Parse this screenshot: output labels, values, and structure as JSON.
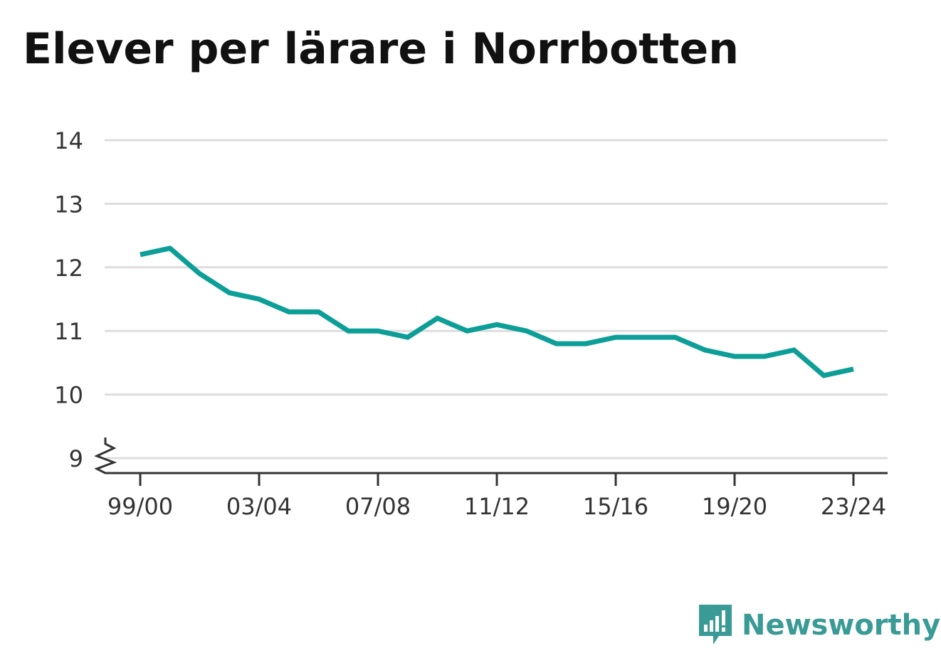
{
  "chart_data": {
    "type": "line",
    "title": "Elever per lärare i Norrbotten",
    "x_tick_labels": [
      "99/00",
      "03/04",
      "07/08",
      "11/12",
      "15/16",
      "19/20",
      "23/24"
    ],
    "y_ticks": [
      9,
      10,
      11,
      12,
      13,
      14
    ],
    "ylim": [
      9,
      14
    ],
    "y_axis_break": true,
    "grid": true,
    "line_color": "#0c9e97",
    "series": [
      {
        "x": [
          "99/00",
          "00/01",
          "01/02",
          "02/03",
          "03/04",
          "04/05",
          "05/06",
          "06/07",
          "07/08",
          "08/09",
          "09/10",
          "10/11",
          "11/12",
          "12/13",
          "13/14",
          "14/15",
          "15/16",
          "16/17",
          "17/18",
          "18/19",
          "19/20",
          "20/21",
          "21/22",
          "22/23",
          "23/24"
        ],
        "values": [
          12.2,
          12.3,
          11.9,
          11.6,
          11.5,
          11.3,
          11.3,
          11.0,
          11.0,
          10.9,
          11.2,
          11.0,
          11.1,
          11.0,
          10.8,
          10.8,
          10.9,
          10.9,
          10.9,
          10.7,
          10.6,
          10.6,
          10.7,
          10.3,
          10.4
        ]
      }
    ]
  },
  "brand": {
    "name": "Newsworthy",
    "icon": "newsworthy-logo-icon",
    "color": "#3a9b96"
  }
}
